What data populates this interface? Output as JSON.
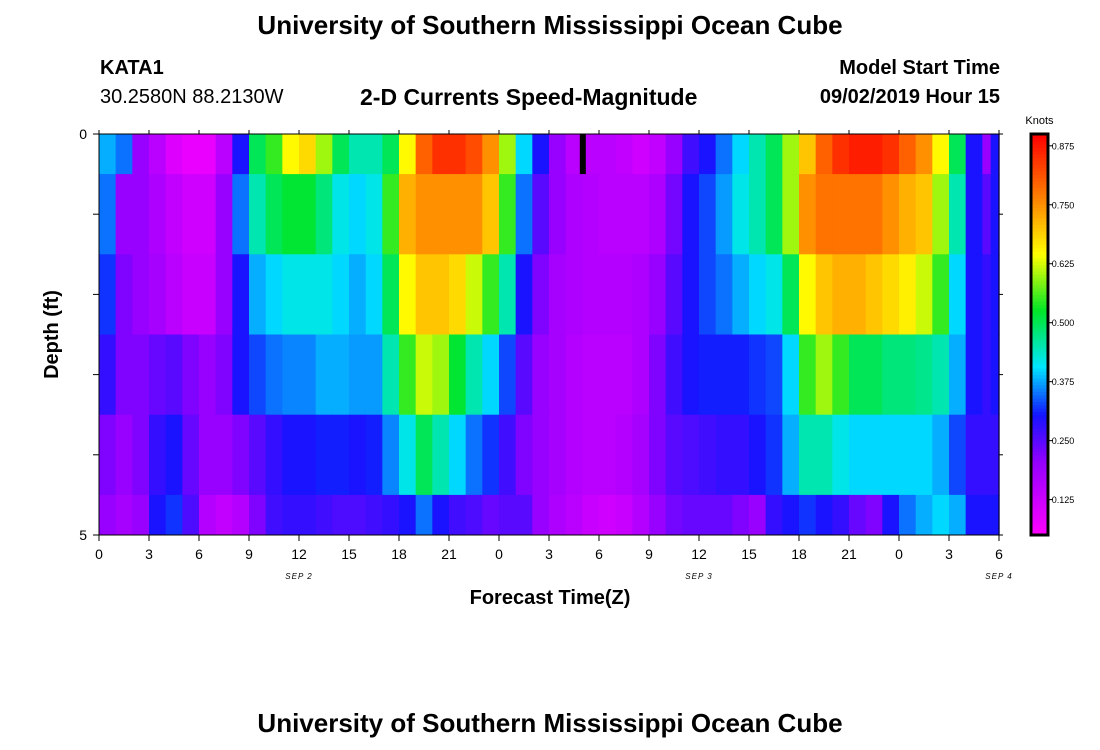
{
  "header": {
    "main_title": "University of Southern Mississippi Ocean Cube",
    "station_id": "KATA1",
    "station_coords": "30.2580N 88.2130W",
    "chart_title": "2-D Currents Speed-Magnitude",
    "start_label": "Model Start Time",
    "start_value": "09/02/2019 Hour 15"
  },
  "footer": {
    "title": "University of Southern Mississippi Ocean Cube"
  },
  "chart_data": {
    "type": "heatmap",
    "title": "2-D Currents Speed-Magnitude",
    "xlabel": "Forecast Time(Z)",
    "ylabel": "Depth (ft)",
    "y_tick_labels": [
      "0",
      "5"
    ],
    "ylim": [
      0,
      5
    ],
    "x_tick_labels": [
      "0",
      "3",
      "6",
      "9",
      "12",
      "15",
      "18",
      "21",
      "0",
      "3",
      "6",
      "9",
      "12",
      "15",
      "18",
      "21",
      "0",
      "3",
      "6"
    ],
    "day_labels": [
      {
        "label": "SEP 2",
        "hour": 12
      },
      {
        "label": "SEP 3",
        "hour": 36
      },
      {
        "label": "SEP 4",
        "hour": 54
      }
    ],
    "xlim_hours": [
      0,
      54
    ],
    "colorbar": {
      "label": "Knots",
      "ticks": [
        "0.125",
        "0.250",
        "0.375",
        "0.500",
        "0.625",
        "0.750",
        "0.875"
      ],
      "range": [
        0.05,
        0.9
      ],
      "palette": "magenta-blue-cyan-green-yellow-red"
    },
    "layers": [
      {
        "depth_top": 0.0,
        "depth_bottom": 0.5,
        "hours": [
          0,
          1,
          2,
          3,
          4,
          5,
          6,
          7,
          8,
          9,
          10,
          11,
          12,
          13,
          14,
          15,
          16,
          17,
          18,
          19,
          20,
          21,
          22,
          23,
          24,
          25,
          26,
          27,
          28,
          29,
          30,
          31,
          32,
          33,
          34,
          35,
          36,
          37,
          38,
          39,
          40,
          41,
          42,
          43,
          44,
          45,
          46,
          47,
          48,
          49,
          50,
          51,
          52,
          53,
          54
        ],
        "speeds": [
          0.38,
          0.35,
          0.2,
          0.15,
          0.1,
          0.08,
          0.08,
          0.15,
          0.3,
          0.5,
          0.55,
          0.65,
          0.68,
          0.6,
          0.5,
          0.45,
          0.45,
          0.5,
          0.65,
          0.8,
          0.85,
          0.85,
          0.82,
          0.75,
          0.6,
          0.4,
          0.3,
          0.2,
          0.15,
          0.15,
          0.15,
          0.14,
          0.12,
          0.14,
          0.2,
          0.27,
          0.3,
          0.35,
          0.4,
          0.45,
          0.5,
          0.6,
          0.7,
          0.8,
          0.85,
          0.87,
          0.87,
          0.85,
          0.8,
          0.75,
          0.65,
          0.5,
          0.3,
          0.2,
          0.3
        ]
      },
      {
        "depth_top": 0.5,
        "depth_bottom": 1.5,
        "hours": [
          0,
          1,
          2,
          3,
          4,
          5,
          6,
          7,
          8,
          9,
          10,
          11,
          12,
          13,
          14,
          15,
          16,
          17,
          18,
          19,
          20,
          21,
          22,
          23,
          24,
          25,
          26,
          27,
          28,
          29,
          30,
          31,
          32,
          33,
          34,
          35,
          36,
          37,
          38,
          39,
          40,
          41,
          42,
          43,
          44,
          45,
          46,
          47,
          48,
          49,
          50,
          51,
          52,
          53,
          54
        ],
        "speeds": [
          0.35,
          0.2,
          0.2,
          0.17,
          0.14,
          0.12,
          0.12,
          0.2,
          0.35,
          0.45,
          0.5,
          0.52,
          0.52,
          0.48,
          0.42,
          0.4,
          0.42,
          0.55,
          0.72,
          0.75,
          0.75,
          0.75,
          0.75,
          0.7,
          0.55,
          0.35,
          0.25,
          0.2,
          0.17,
          0.16,
          0.15,
          0.15,
          0.15,
          0.17,
          0.23,
          0.3,
          0.33,
          0.37,
          0.42,
          0.45,
          0.5,
          0.6,
          0.75,
          0.78,
          0.78,
          0.78,
          0.78,
          0.75,
          0.72,
          0.7,
          0.6,
          0.45,
          0.3,
          0.25,
          0.3
        ]
      },
      {
        "depth_top": 1.5,
        "depth_bottom": 2.5,
        "hours": [
          0,
          1,
          2,
          3,
          4,
          5,
          6,
          7,
          8,
          9,
          10,
          11,
          12,
          13,
          14,
          15,
          16,
          17,
          18,
          19,
          20,
          21,
          22,
          23,
          24,
          25,
          26,
          27,
          28,
          29,
          30,
          31,
          32,
          33,
          34,
          35,
          36,
          37,
          38,
          39,
          40,
          41,
          42,
          43,
          44,
          45,
          46,
          47,
          48,
          49,
          50,
          51,
          52,
          53,
          54
        ],
        "speeds": [
          0.32,
          0.22,
          0.2,
          0.18,
          0.15,
          0.13,
          0.13,
          0.2,
          0.3,
          0.38,
          0.4,
          0.42,
          0.42,
          0.42,
          0.4,
          0.38,
          0.4,
          0.5,
          0.65,
          0.7,
          0.7,
          0.68,
          0.62,
          0.55,
          0.45,
          0.3,
          0.22,
          0.18,
          0.17,
          0.16,
          0.16,
          0.16,
          0.17,
          0.2,
          0.25,
          0.3,
          0.33,
          0.35,
          0.38,
          0.4,
          0.42,
          0.5,
          0.65,
          0.7,
          0.72,
          0.72,
          0.7,
          0.68,
          0.66,
          0.62,
          0.55,
          0.4,
          0.3,
          0.28,
          0.3
        ]
      },
      {
        "depth_top": 2.5,
        "depth_bottom": 3.5,
        "hours": [
          0,
          1,
          2,
          3,
          4,
          5,
          6,
          7,
          8,
          9,
          10,
          11,
          12,
          13,
          14,
          15,
          16,
          17,
          18,
          19,
          20,
          21,
          22,
          23,
          24,
          25,
          26,
          27,
          28,
          29,
          30,
          31,
          32,
          33,
          34,
          35,
          36,
          37,
          38,
          39,
          40,
          41,
          42,
          43,
          44,
          45,
          46,
          47,
          48,
          49,
          50,
          51,
          52,
          53,
          54
        ],
        "speeds": [
          0.28,
          0.22,
          0.22,
          0.24,
          0.25,
          0.22,
          0.2,
          0.22,
          0.3,
          0.33,
          0.35,
          0.36,
          0.36,
          0.38,
          0.38,
          0.37,
          0.37,
          0.45,
          0.55,
          0.62,
          0.6,
          0.52,
          0.45,
          0.4,
          0.33,
          0.25,
          0.2,
          0.18,
          0.16,
          0.15,
          0.15,
          0.15,
          0.17,
          0.22,
          0.27,
          0.3,
          0.31,
          0.31,
          0.31,
          0.32,
          0.33,
          0.4,
          0.55,
          0.6,
          0.55,
          0.5,
          0.5,
          0.48,
          0.48,
          0.47,
          0.45,
          0.38,
          0.3,
          0.28,
          0.3
        ]
      },
      {
        "depth_top": 3.5,
        "depth_bottom": 4.5,
        "hours": [
          0,
          1,
          2,
          3,
          4,
          5,
          6,
          7,
          8,
          9,
          10,
          11,
          12,
          13,
          14,
          15,
          16,
          17,
          18,
          19,
          20,
          21,
          22,
          23,
          24,
          25,
          26,
          27,
          28,
          29,
          30,
          31,
          32,
          33,
          34,
          35,
          36,
          37,
          38,
          39,
          40,
          41,
          42,
          43,
          44,
          45,
          46,
          47,
          48,
          49,
          50,
          51,
          52,
          53,
          54
        ],
        "speeds": [
          0.22,
          0.2,
          0.22,
          0.28,
          0.3,
          0.24,
          0.2,
          0.2,
          0.22,
          0.25,
          0.28,
          0.3,
          0.3,
          0.31,
          0.31,
          0.3,
          0.31,
          0.36,
          0.42,
          0.5,
          0.45,
          0.4,
          0.35,
          0.32,
          0.27,
          0.22,
          0.2,
          0.18,
          0.16,
          0.15,
          0.15,
          0.16,
          0.18,
          0.22,
          0.25,
          0.26,
          0.27,
          0.28,
          0.28,
          0.3,
          0.32,
          0.38,
          0.45,
          0.45,
          0.42,
          0.4,
          0.4,
          0.4,
          0.4,
          0.4,
          0.38,
          0.33,
          0.28,
          0.28,
          0.28
        ]
      },
      {
        "depth_top": 4.5,
        "depth_bottom": 5.0,
        "hours": [
          0,
          1,
          2,
          3,
          4,
          5,
          6,
          7,
          8,
          9,
          10,
          11,
          12,
          13,
          14,
          15,
          16,
          17,
          18,
          19,
          20,
          21,
          22,
          23,
          24,
          25,
          26,
          27,
          28,
          29,
          30,
          31,
          32,
          33,
          34,
          35,
          36,
          37,
          38,
          39,
          40,
          41,
          42,
          43,
          44,
          45,
          46,
          47,
          48,
          49,
          50,
          51,
          52,
          53,
          54
        ],
        "speeds": [
          0.2,
          0.18,
          0.2,
          0.3,
          0.32,
          0.26,
          0.16,
          0.14,
          0.16,
          0.22,
          0.27,
          0.28,
          0.28,
          0.27,
          0.26,
          0.26,
          0.27,
          0.28,
          0.3,
          0.35,
          0.3,
          0.27,
          0.26,
          0.24,
          0.25,
          0.25,
          0.2,
          0.17,
          0.15,
          0.13,
          0.12,
          0.13,
          0.16,
          0.2,
          0.23,
          0.24,
          0.24,
          0.24,
          0.22,
          0.2,
          0.28,
          0.3,
          0.32,
          0.3,
          0.28,
          0.24,
          0.22,
          0.3,
          0.35,
          0.38,
          0.4,
          0.38,
          0.3,
          0.3,
          0.3
        ]
      }
    ],
    "missing_marker": {
      "hour": 29,
      "depth_top": 0.0,
      "depth_bottom": 0.5
    }
  }
}
